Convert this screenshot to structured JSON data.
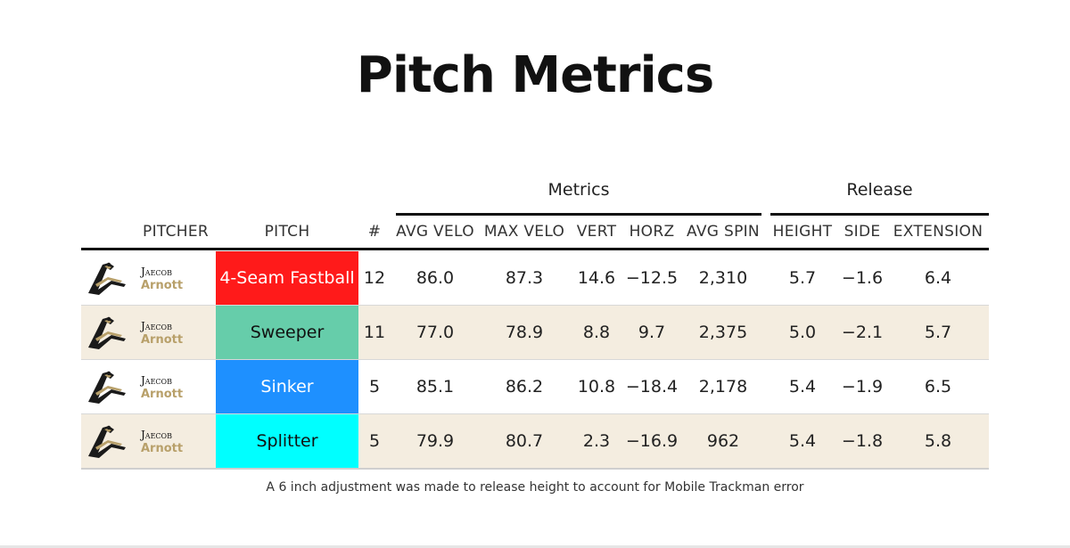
{
  "title": "Pitch Metrics",
  "groups": {
    "metrics": "Metrics",
    "release": "Release"
  },
  "columns": [
    "PITCHER",
    "PITCH",
    "#",
    "AVG VELO",
    "MAX VELO",
    "VERT",
    "HORZ",
    "AVG SPIN",
    "HEIGHT",
    "SIDE",
    "EXTENSION"
  ],
  "rows": [
    {
      "first": "Jaecob",
      "last": "Arnott",
      "pitch": "4-Seam Fastball",
      "pitch_color": "#ff1a1a",
      "pitch_text_color": "#ffffff",
      "count": "12",
      "avg_velo": "86.0",
      "max_velo": "87.3",
      "vert": "14.6",
      "horz": "−12.5",
      "avg_spin": "2,310",
      "height": "5.7",
      "side": "−1.6",
      "extension": "6.4"
    },
    {
      "first": "Jaecob",
      "last": "Arnott",
      "pitch": "Sweeper",
      "pitch_color": "#66cdaa",
      "pitch_text_color": "#111111",
      "count": "11",
      "avg_velo": "77.0",
      "max_velo": "78.9",
      "vert": "8.8",
      "horz": "9.7",
      "avg_spin": "2,375",
      "height": "5.0",
      "side": "−2.1",
      "extension": "5.7"
    },
    {
      "first": "Jaecob",
      "last": "Arnott",
      "pitch": "Sinker",
      "pitch_color": "#1e90ff",
      "pitch_text_color": "#ffffff",
      "count": "5",
      "avg_velo": "85.1",
      "max_velo": "86.2",
      "vert": "10.8",
      "horz": "−18.4",
      "avg_spin": "2,178",
      "height": "5.4",
      "side": "−1.9",
      "extension": "6.5"
    },
    {
      "first": "Jaecob",
      "last": "Arnott",
      "pitch": "Splitter",
      "pitch_color": "#00ffff",
      "pitch_text_color": "#111111",
      "count": "5",
      "avg_velo": "79.9",
      "max_velo": "80.7",
      "vert": "2.3",
      "horz": "−16.9",
      "avg_spin": "962",
      "height": "5.4",
      "side": "−1.8",
      "extension": "5.8"
    }
  ],
  "footnote": "A 6 inch adjustment was made to release height to account for Mobile Trackman error"
}
